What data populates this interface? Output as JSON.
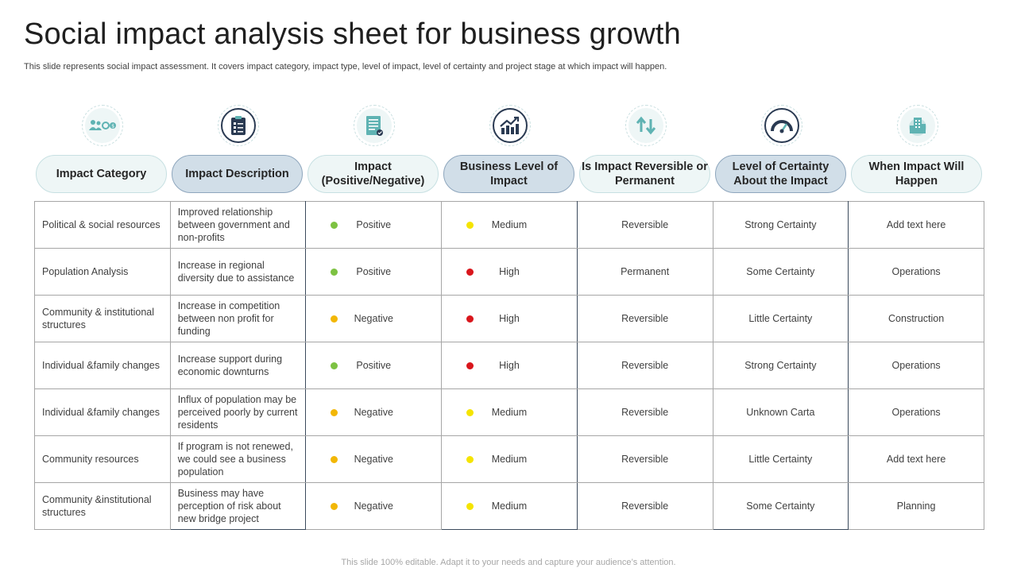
{
  "title": "Social impact analysis sheet for business growth",
  "subtitle": "This slide represents social impact assessment. It covers impact category, impact type,  level of impact, level of certainty and project stage at which impact will happen.",
  "footer": "This slide 100% editable. Adapt it to your needs and capture your audience’s attention.",
  "colors": {
    "positive": "#7dc242",
    "negative": "#f2b705",
    "medium": "#f5e400",
    "high": "#d9161c",
    "accent_dark": "#2a3a52",
    "accent_light": "#5fb3b3"
  },
  "columns": [
    {
      "label": "Impact Category",
      "style": "light",
      "icon": "people-sync-icon"
    },
    {
      "label": "Impact Description",
      "style": "dark",
      "icon": "clipboard-checklist-icon"
    },
    {
      "label": "Impact (Positive/Negative)",
      "style": "light",
      "icon": "document-checklist-icon"
    },
    {
      "label": "Business Level of Impact",
      "style": "dark",
      "icon": "growth-chart-icon"
    },
    {
      "label": "Is Impact Reversible or Permanent",
      "style": "light",
      "icon": "reverse-arrows-icon"
    },
    {
      "label": "Level of Certainty About the Impact",
      "style": "dark",
      "icon": "gauge-icon"
    },
    {
      "label": "When Impact Will Happen",
      "style": "light",
      "icon": "building-globe-icon"
    }
  ],
  "rows": [
    {
      "category": "Political & social resources",
      "description": "Improved  relationship between government and non-profits",
      "impact": "Positive",
      "impact_color": "positive",
      "level": "Medium",
      "level_color": "medium",
      "reversible": "Reversible",
      "certainty": "Strong Certainty",
      "when": "Add text here"
    },
    {
      "category": "Population Analysis",
      "description": "Increase in regional diversity due to assistance",
      "impact": "Positive",
      "impact_color": "positive",
      "level": "High",
      "level_color": "high",
      "reversible": "Permanent",
      "certainty": "Some Certainty",
      "when": "Operations"
    },
    {
      "category": "Community & institutional structures",
      "description": "Increase in competition between non profit for funding",
      "impact": "Negative",
      "impact_color": "negative",
      "level": "High",
      "level_color": "high",
      "reversible": "Reversible",
      "certainty": "Little Certainty",
      "when": "Construction"
    },
    {
      "category": "Individual  &family changes",
      "description": "Increase support during economic downturns",
      "impact": "Positive",
      "impact_color": "positive",
      "level": "High",
      "level_color": "high",
      "reversible": "Reversible",
      "certainty": "Strong Certainty",
      "when": "Operations"
    },
    {
      "category": "Individual  &family changes",
      "description": "Influx of population may be perceived poorly by current residents",
      "impact": "Negative",
      "impact_color": "negative",
      "level": "Medium",
      "level_color": "medium",
      "reversible": "Reversible",
      "certainty": "Unknown Carta",
      "when": "Operations"
    },
    {
      "category": "Community resources",
      "description": "If program is not renewed, we could see a business population",
      "impact": "Negative",
      "impact_color": "negative",
      "level": "Medium",
      "level_color": "medium",
      "reversible": "Reversible",
      "certainty": "Little Certainty",
      "when": "Add text here"
    },
    {
      "category": "Community &institutional structures",
      "description": "Business may have perception of risk about new bridge project",
      "impact": "Negative",
      "impact_color": "negative",
      "level": "Medium",
      "level_color": "medium",
      "reversible": "Reversible",
      "certainty": "Some Certainty",
      "when": "Planning"
    }
  ]
}
